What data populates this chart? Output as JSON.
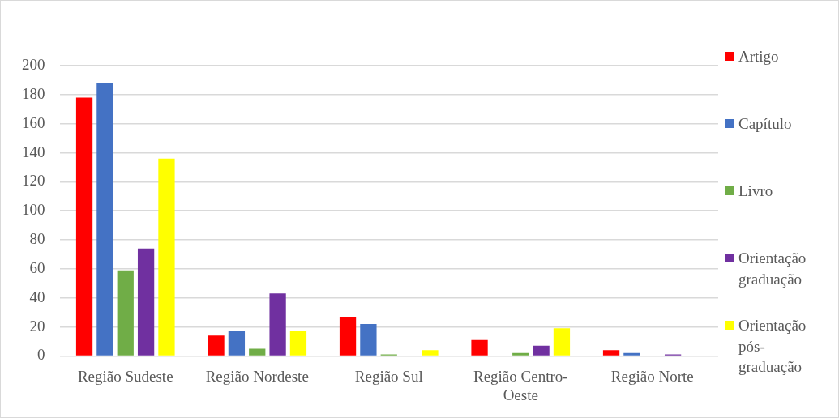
{
  "chart_data": {
    "type": "bar",
    "categories": [
      "Região Sudeste",
      "Região Nordeste",
      "Região Sul",
      "Região Centro-Oeste",
      "Região Norte"
    ],
    "series": [
      {
        "name": "Artigo",
        "color": "#ff0000",
        "values": [
          178,
          14,
          27,
          11,
          4
        ]
      },
      {
        "name": "Capítulo",
        "color": "#4472c4",
        "values": [
          188,
          17,
          22,
          0,
          2
        ]
      },
      {
        "name": "Livro",
        "color": "#70ad47",
        "values": [
          59,
          5,
          1,
          2,
          0
        ]
      },
      {
        "name": "Orientação graduação",
        "color": "#7030a0",
        "values": [
          74,
          43,
          0,
          7,
          1
        ]
      },
      {
        "name": "Orientação pós-graduação",
        "color": "#ffff00",
        "values": [
          136,
          17,
          4,
          19,
          0
        ]
      }
    ],
    "ylim": [
      0,
      200
    ],
    "yticks": [
      0,
      20,
      40,
      60,
      80,
      100,
      120,
      140,
      160,
      180,
      200
    ],
    "grid": "y",
    "legend": "right"
  }
}
